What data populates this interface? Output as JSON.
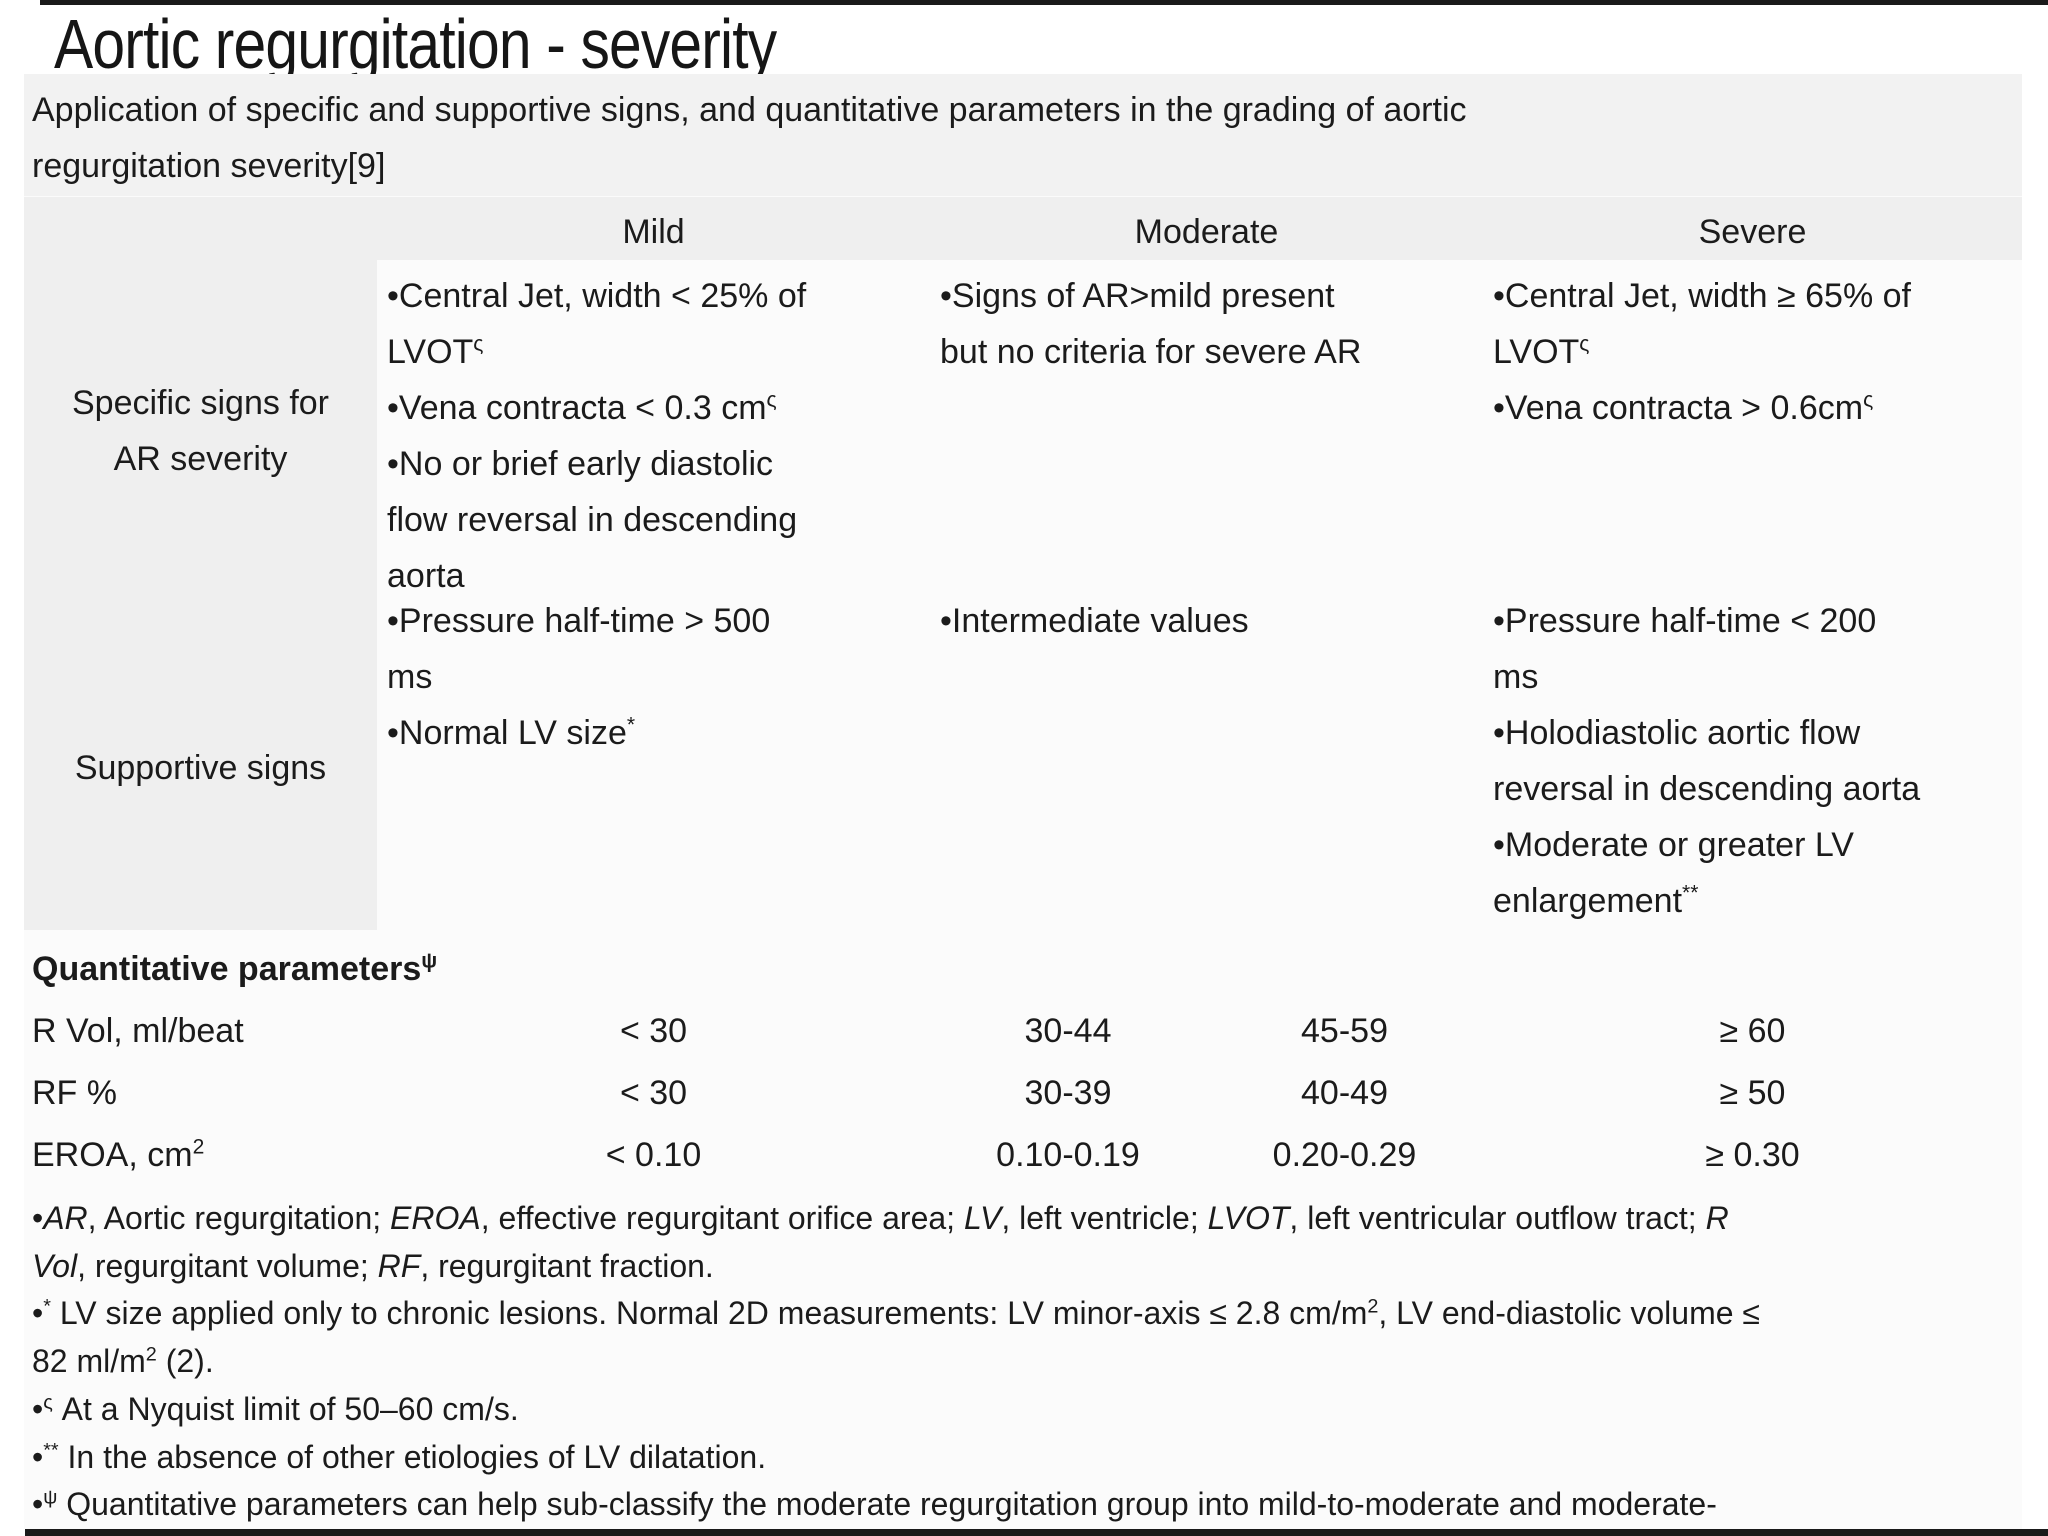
{
  "slide": {
    "title": "Aortic regurgitation - severity"
  },
  "table": {
    "caption": [
      [
        "Application of specific and supportive signs, and quantitative parameters in the grading of aortic"
      ],
      [
        "regurgitation severity[9]"
      ]
    ],
    "columns": [
      "Mild",
      "Moderate",
      "Severe"
    ],
    "row_specific": {
      "label": [
        [
          "Specific signs for"
        ],
        [
          "AR severity"
        ]
      ],
      "mild": [
        [
          "•Central Jet, width < 25% of"
        ],
        [
          "LVOT",
          {
            "t": "ς",
            "sup": true
          }
        ],
        [
          "•Vena contracta < 0.3 cm",
          {
            "t": "ς",
            "sup": true
          }
        ],
        [
          "•No or brief early diastolic"
        ],
        [
          "flow reversal in descending"
        ],
        [
          "aorta"
        ]
      ],
      "moderate": [
        [
          "•Signs of AR>mild present"
        ],
        [
          "but no criteria for severe AR"
        ]
      ],
      "severe": [
        [
          "•Central Jet, width ≥ 65% of"
        ],
        [
          "LVOT",
          {
            "t": "ς",
            "sup": true
          }
        ],
        [
          "•Vena contracta > 0.6cm",
          {
            "t": "ς",
            "sup": true
          }
        ]
      ]
    },
    "row_supportive": {
      "label": [
        [
          "Supportive signs"
        ]
      ],
      "mild": [
        [
          "•Pressure half-time > 500"
        ],
        [
          "ms"
        ],
        [
          "•Normal LV size",
          {
            "t": "*",
            "sup": true
          }
        ]
      ],
      "moderate": [
        [
          "•Intermediate values"
        ]
      ],
      "severe": [
        [
          "•Pressure half-time < 200"
        ],
        [
          "ms"
        ],
        [
          "•Holodiastolic aortic flow"
        ],
        [
          "reversal in descending aorta"
        ],
        [
          "•Moderate or greater LV"
        ],
        [
          "enlargement",
          {
            "t": "**",
            "sup": true
          }
        ]
      ]
    }
  },
  "quantitative": {
    "heading": [
      [
        "Quantitative parameters",
        {
          "t": "ψ",
          "sup": true
        }
      ]
    ],
    "rows": [
      {
        "label": [
          [
            "R Vol, ml/beat"
          ]
        ],
        "mild": "< 30",
        "moderate_low": "30-44",
        "moderate_high": "45-59",
        "severe": "≥ 60"
      },
      {
        "label": [
          [
            "RF %"
          ]
        ],
        "mild": "< 30",
        "moderate_low": "30-39",
        "moderate_high": "40-49",
        "severe": "≥ 50"
      },
      {
        "label": [
          [
            "EROA, cm",
            {
              "t": "2",
              "sup": true
            }
          ]
        ],
        "mild": "< 0.10",
        "moderate_low": "0.10-0.19",
        "moderate_high": "0.20-0.29",
        "severe": "≥ 0.30"
      }
    ]
  },
  "footnotes": [
    [
      "•",
      {
        "t": "AR",
        "i": true
      },
      ", Aortic regurgitation; ",
      {
        "t": "EROA",
        "i": true
      },
      ", effective regurgitant orifice area; ",
      {
        "t": "LV",
        "i": true
      },
      ", left ventricle; ",
      {
        "t": "LVOT",
        "i": true
      },
      ", left ventricular outflow tract; ",
      {
        "t": "R",
        "i": true
      }
    ],
    [
      {
        "t": "Vol",
        "i": true
      },
      ", regurgitant volume; ",
      {
        "t": "RF",
        "i": true
      },
      ", regurgitant fraction."
    ],
    [
      "•",
      {
        "t": "*",
        "sup": true
      },
      " LV size applied only to chronic lesions. Normal 2D measurements: LV minor-axis ≤ 2.8 cm/m",
      {
        "t": "2",
        "sup": true
      },
      ", LV end-diastolic volume ≤"
    ],
    [
      "82 ml/m",
      {
        "t": "2",
        "sup": true
      },
      " (2)."
    ],
    [
      "•",
      {
        "t": "ς",
        "sup": true
      },
      " At a Nyquist limit of 50–60 cm/s."
    ],
    [
      "•",
      {
        "t": "**",
        "sup": true
      },
      " In the absence of other etiologies of LV dilatation."
    ],
    [
      "•",
      {
        "t": "ψ",
        "sup": true
      },
      " Quantitative parameters can help sub-classify the moderate regurgitation group into mild-to-moderate and moderate-"
    ]
  ]
}
